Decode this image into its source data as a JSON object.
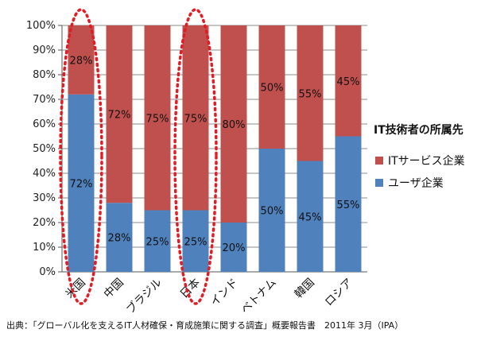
{
  "chart_data": {
    "type": "bar",
    "stacked": true,
    "percent_stacked": true,
    "categories": [
      "米国",
      "中国",
      "ブラジル",
      "日本",
      "インド",
      "ベトナム",
      "韓国",
      "ロシア"
    ],
    "series": [
      {
        "name": "ユーザ企業",
        "color": "#4f81bd",
        "values": [
          72,
          28,
          25,
          25,
          20,
          50,
          45,
          55
        ]
      },
      {
        "name": "ITサービス企業",
        "color": "#c0504d",
        "values": [
          28,
          72,
          75,
          75,
          80,
          50,
          55,
          45
        ]
      }
    ],
    "data_labels": {
      "ユーザ企業": [
        "72%",
        "28%",
        "25%",
        "25%",
        "20%",
        "50%",
        "45%",
        "55%"
      ],
      "ITサービス企業": [
        "28%",
        "72%",
        "75%",
        "75%",
        "80%",
        "50%",
        "55%",
        "45%"
      ]
    },
    "ylim": [
      0,
      100
    ],
    "yticks": [
      "0%",
      "10%",
      "20%",
      "30%",
      "40%",
      "50%",
      "60%",
      "70%",
      "80%",
      "90%",
      "100%"
    ],
    "grid": true,
    "legend": {
      "title": "IT技術者の所属先",
      "placement": "right",
      "order": [
        "ITサービス企業",
        "ユーザ企業"
      ]
    },
    "highlighted_categories": [
      "米国",
      "日本"
    ],
    "highlight_color": "#e31b23"
  },
  "source": "出典：「グローバル化を支えるIT人材確保・育成施策に関する調査」概要報告書　2011年 3月（IPA）"
}
